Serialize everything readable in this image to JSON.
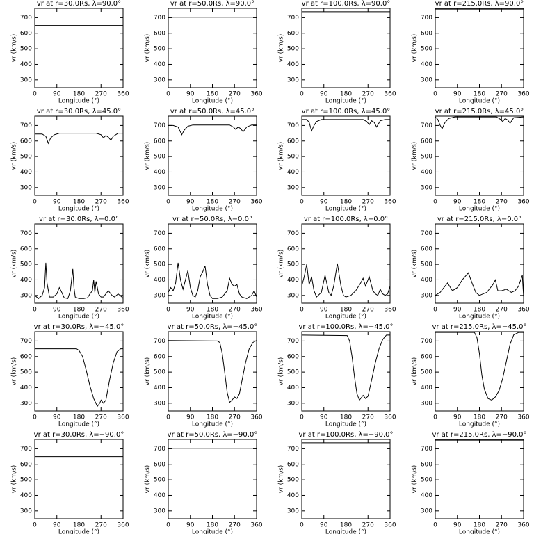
{
  "chart_data": [
    {
      "type": "line",
      "title": "vr at r=30.0Rs, λ=90.0°",
      "x_label": "Longitude (°)",
      "y_label": "vr (km/s)",
      "x": [
        0,
        360
      ],
      "values": [
        650,
        650
      ],
      "xlim": [
        0,
        360
      ],
      "ylim": [
        250,
        760
      ],
      "xticks": [
        0,
        90,
        180,
        270,
        360
      ],
      "yticks": [
        300,
        400,
        500,
        600,
        700
      ],
      "color": "#000000"
    },
    {
      "type": "line",
      "title": "vr at r=50.0Rs, λ=90.0°",
      "x_label": "Longitude (°)",
      "y_label": "vr (km/s)",
      "x": [
        0,
        360
      ],
      "values": [
        703,
        703
      ],
      "xlim": [
        0,
        360
      ],
      "ylim": [
        250,
        760
      ],
      "xticks": [
        0,
        90,
        180,
        270,
        360
      ],
      "yticks": [
        300,
        400,
        500,
        600,
        700
      ],
      "color": "#000000"
    },
    {
      "type": "line",
      "title": "vr at r=100.0Rs, λ=90.0°",
      "x_label": "Longitude (°)",
      "y_label": "vr (km/s)",
      "x": [
        0,
        360
      ],
      "values": [
        738,
        738
      ],
      "xlim": [
        0,
        360
      ],
      "ylim": [
        250,
        760
      ],
      "xticks": [
        0,
        90,
        180,
        270,
        360
      ],
      "yticks": [
        300,
        400,
        500,
        600,
        700
      ],
      "color": "#000000"
    },
    {
      "type": "line",
      "title": "vr at r=215.0Rs, λ=90.0°",
      "x_label": "Longitude (°)",
      "y_label": "vr (km/s)",
      "x": [
        0,
        360
      ],
      "values": [
        755,
        755
      ],
      "xlim": [
        0,
        360
      ],
      "ylim": [
        250,
        760
      ],
      "xticks": [
        0,
        90,
        180,
        270,
        360
      ],
      "yticks": [
        300,
        400,
        500,
        600,
        700
      ],
      "color": "#000000"
    },
    {
      "type": "line",
      "title": "vr at r=30.0Rs, λ=45.0°",
      "x_label": "Longitude (°)",
      "y_label": "vr (km/s)",
      "x": [
        0,
        30,
        45,
        55,
        65,
        80,
        100,
        150,
        200,
        250,
        270,
        280,
        290,
        300,
        310,
        320,
        340,
        360
      ],
      "values": [
        645,
        645,
        630,
        585,
        620,
        640,
        650,
        650,
        650,
        650,
        640,
        620,
        635,
        625,
        605,
        630,
        650,
        650
      ],
      "xlim": [
        0,
        360
      ],
      "ylim": [
        250,
        760
      ],
      "xticks": [
        0,
        90,
        180,
        270,
        360
      ],
      "yticks": [
        300,
        400,
        500,
        600,
        700
      ],
      "color": "#000000"
    },
    {
      "type": "line",
      "title": "vr at r=50.0Rs, λ=45.0°",
      "x_label": "Longitude (°)",
      "y_label": "vr (km/s)",
      "x": [
        0,
        20,
        40,
        55,
        65,
        80,
        100,
        150,
        200,
        250,
        265,
        275,
        285,
        295,
        305,
        320,
        340,
        360
      ],
      "values": [
        700,
        700,
        690,
        640,
        670,
        695,
        703,
        703,
        703,
        703,
        690,
        675,
        690,
        680,
        660,
        690,
        703,
        703
      ],
      "xlim": [
        0,
        360
      ],
      "ylim": [
        250,
        760
      ],
      "xticks": [
        0,
        90,
        180,
        270,
        360
      ],
      "yticks": [
        300,
        400,
        500,
        600,
        700
      ],
      "color": "#000000"
    },
    {
      "type": "line",
      "title": "vr at r=100.0Rs, λ=45.0°",
      "x_label": "Longitude (°)",
      "y_label": "vr (km/s)",
      "x": [
        0,
        20,
        30,
        40,
        50,
        60,
        80,
        150,
        250,
        265,
        275,
        285,
        295,
        305,
        320,
        340,
        360
      ],
      "values": [
        738,
        738,
        720,
        665,
        700,
        725,
        738,
        738,
        738,
        725,
        705,
        730,
        720,
        690,
        730,
        738,
        738
      ],
      "xlim": [
        0,
        360
      ],
      "ylim": [
        250,
        760
      ],
      "xticks": [
        0,
        90,
        180,
        270,
        360
      ],
      "yticks": [
        300,
        400,
        500,
        600,
        700
      ],
      "color": "#000000"
    },
    {
      "type": "line",
      "title": "vr at r=215.0Rs, λ=45.0°",
      "x_label": "Longitude (°)",
      "y_label": "vr (km/s)",
      "x": [
        0,
        10,
        20,
        28,
        40,
        55,
        80,
        150,
        250,
        265,
        275,
        285,
        295,
        305,
        320,
        360
      ],
      "values": [
        755,
        740,
        700,
        680,
        720,
        745,
        755,
        755,
        755,
        740,
        725,
        745,
        735,
        715,
        750,
        755
      ],
      "xlim": [
        0,
        360
      ],
      "ylim": [
        250,
        760
      ],
      "xticks": [
        0,
        90,
        180,
        270,
        360
      ],
      "yticks": [
        300,
        400,
        500,
        600,
        700
      ],
      "color": "#000000"
    },
    {
      "type": "line",
      "title": "vr at r=30.0Rs, λ=0.0°",
      "x_label": "Longitude (°)",
      "y_label": "vr (km/s)",
      "x": [
        0,
        15,
        30,
        40,
        45,
        50,
        60,
        75,
        90,
        100,
        110,
        120,
        135,
        145,
        155,
        160,
        165,
        180,
        200,
        215,
        225,
        235,
        240,
        245,
        250,
        255,
        260,
        270,
        280,
        290,
        300,
        315,
        325,
        340,
        355,
        360
      ],
      "values": [
        300,
        280,
        300,
        350,
        510,
        380,
        290,
        290,
        310,
        350,
        320,
        285,
        280,
        330,
        470,
        350,
        290,
        280,
        280,
        285,
        310,
        330,
        400,
        320,
        390,
        350,
        310,
        290,
        290,
        310,
        330,
        300,
        290,
        310,
        290,
        280
      ],
      "xlim": [
        0,
        360
      ],
      "ylim": [
        250,
        760
      ],
      "xticks": [
        0,
        90,
        180,
        270,
        360
      ],
      "yticks": [
        300,
        400,
        500,
        600,
        700
      ],
      "color": "#000000"
    },
    {
      "type": "line",
      "title": "vr at r=50.0Rs, λ=0.0°",
      "x_label": "Longitude (°)",
      "y_label": "vr (km/s)",
      "x": [
        0,
        10,
        20,
        30,
        40,
        50,
        60,
        70,
        80,
        90,
        100,
        110,
        120,
        130,
        140,
        150,
        160,
        170,
        180,
        200,
        220,
        240,
        250,
        260,
        270,
        280,
        290,
        300,
        320,
        340,
        350,
        360
      ],
      "values": [
        320,
        350,
        330,
        380,
        510,
        400,
        340,
        400,
        460,
        350,
        300,
        290,
        330,
        420,
        450,
        490,
        370,
        300,
        280,
        280,
        290,
        330,
        410,
        370,
        360,
        370,
        310,
        290,
        280,
        300,
        330,
        290
      ],
      "xlim": [
        0,
        360
      ],
      "ylim": [
        250,
        760
      ],
      "xticks": [
        0,
        90,
        180,
        270,
        360
      ],
      "yticks": [
        300,
        400,
        500,
        600,
        700
      ],
      "color": "#000000"
    },
    {
      "type": "line",
      "title": "vr at r=100.0Rs, λ=0.0°",
      "x_label": "Longitude (°)",
      "y_label": "vr (km/s)",
      "x": [
        0,
        10,
        20,
        30,
        40,
        50,
        60,
        80,
        95,
        110,
        120,
        130,
        145,
        160,
        170,
        180,
        200,
        220,
        240,
        250,
        260,
        275,
        290,
        300,
        310,
        320,
        330,
        340,
        350,
        360
      ],
      "values": [
        360,
        420,
        500,
        370,
        420,
        330,
        290,
        320,
        430,
        320,
        300,
        360,
        505,
        360,
        300,
        290,
        300,
        330,
        380,
        410,
        360,
        420,
        330,
        310,
        300,
        340,
        310,
        300,
        310,
        360
      ],
      "xlim": [
        0,
        360
      ],
      "ylim": [
        250,
        760
      ],
      "xticks": [
        0,
        90,
        180,
        270,
        360
      ],
      "yticks": [
        300,
        400,
        500,
        600,
        700
      ],
      "color": "#000000"
    },
    {
      "type": "line",
      "title": "vr at r=215.0Rs, λ=0.0°",
      "x_label": "Longitude (°)",
      "y_label": "vr (km/s)",
      "x": [
        0,
        20,
        50,
        70,
        90,
        110,
        135,
        150,
        165,
        180,
        210,
        235,
        245,
        255,
        270,
        290,
        310,
        325,
        340,
        355,
        360
      ],
      "values": [
        300,
        320,
        380,
        330,
        350,
        400,
        445,
        380,
        320,
        300,
        320,
        370,
        400,
        330,
        330,
        340,
        320,
        330,
        360,
        430,
        290
      ],
      "xlim": [
        0,
        360
      ],
      "ylim": [
        250,
        760
      ],
      "xticks": [
        0,
        90,
        180,
        270,
        360
      ],
      "yticks": [
        300,
        400,
        500,
        600,
        700
      ],
      "color": "#000000"
    },
    {
      "type": "line",
      "title": "vr at r=30.0Rs, λ=−45.0°",
      "x_label": "Longitude (°)",
      "y_label": "vr (km/s)",
      "x": [
        0,
        170,
        180,
        195,
        210,
        225,
        240,
        255,
        265,
        270,
        280,
        290,
        305,
        320,
        335,
        350,
        360
      ],
      "values": [
        650,
        650,
        640,
        600,
        510,
        410,
        330,
        280,
        300,
        320,
        300,
        320,
        450,
        560,
        630,
        650,
        650
      ],
      "xlim": [
        0,
        360
      ],
      "ylim": [
        250,
        760
      ],
      "xticks": [
        0,
        90,
        180,
        270,
        360
      ],
      "yticks": [
        300,
        400,
        500,
        600,
        700
      ],
      "color": "#000000"
    },
    {
      "type": "line",
      "title": "vr at r=50.0Rs, λ=−45.0°",
      "x_label": "Longitude (°)",
      "y_label": "vr (km/s)",
      "x": [
        0,
        200,
        210,
        220,
        230,
        240,
        250,
        260,
        270,
        280,
        290,
        300,
        315,
        330,
        345,
        360
      ],
      "values": [
        703,
        700,
        690,
        620,
        500,
        370,
        305,
        320,
        340,
        330,
        360,
        440,
        560,
        650,
        690,
        703
      ],
      "xlim": [
        0,
        360
      ],
      "ylim": [
        250,
        760
      ],
      "xticks": [
        0,
        90,
        180,
        270,
        360
      ],
      "yticks": [
        300,
        400,
        500,
        600,
        700
      ],
      "color": "#000000"
    },
    {
      "type": "line",
      "title": "vr at r=100.0Rs, λ=−45.0°",
      "x_label": "Longitude (°)",
      "y_label": "vr (km/s)",
      "x": [
        0,
        185,
        195,
        205,
        215,
        225,
        235,
        245,
        250,
        260,
        270,
        285,
        300,
        315,
        330,
        345,
        360
      ],
      "values": [
        738,
        735,
        700,
        600,
        470,
        360,
        320,
        340,
        350,
        330,
        345,
        450,
        560,
        650,
        710,
        738,
        738
      ],
      "xlim": [
        0,
        360
      ],
      "ylim": [
        250,
        760
      ],
      "xticks": [
        0,
        90,
        180,
        270,
        360
      ],
      "yticks": [
        300,
        400,
        500,
        600,
        700
      ],
      "color": "#000000"
    },
    {
      "type": "line",
      "title": "vr at r=215.0Rs, λ=−45.0°",
      "x_label": "Longitude (°)",
      "y_label": "vr (km/s)",
      "x": [
        0,
        160,
        170,
        180,
        190,
        200,
        215,
        230,
        245,
        260,
        275,
        290,
        305,
        320,
        340,
        360
      ],
      "values": [
        755,
        755,
        720,
        620,
        480,
        390,
        330,
        320,
        340,
        380,
        460,
        570,
        680,
        740,
        755,
        755
      ],
      "xlim": [
        0,
        360
      ],
      "ylim": [
        250,
        760
      ],
      "xticks": [
        0,
        90,
        180,
        270,
        360
      ],
      "yticks": [
        300,
        400,
        500,
        600,
        700
      ],
      "color": "#000000"
    },
    {
      "type": "line",
      "title": "vr at r=30.0Rs, λ=−90.0°",
      "x_label": "Longitude (°)",
      "y_label": "vr (km/s)",
      "x": [
        0,
        360
      ],
      "values": [
        650,
        650
      ],
      "xlim": [
        0,
        360
      ],
      "ylim": [
        250,
        760
      ],
      "xticks": [
        0,
        90,
        180,
        270,
        360
      ],
      "yticks": [
        300,
        400,
        500,
        600,
        700
      ],
      "color": "#000000"
    },
    {
      "type": "line",
      "title": "vr at r=50.0Rs, λ=−90.0°",
      "x_label": "Longitude (°)",
      "y_label": "vr (km/s)",
      "x": [
        0,
        360
      ],
      "values": [
        703,
        703
      ],
      "xlim": [
        0,
        360
      ],
      "ylim": [
        250,
        760
      ],
      "xticks": [
        0,
        90,
        180,
        270,
        360
      ],
      "yticks": [
        300,
        400,
        500,
        600,
        700
      ],
      "color": "#000000"
    },
    {
      "type": "line",
      "title": "vr at r=100.0Rs, λ=−90.0°",
      "x_label": "Longitude (°)",
      "y_label": "vr (km/s)",
      "x": [
        0,
        360
      ],
      "values": [
        738,
        738
      ],
      "xlim": [
        0,
        360
      ],
      "ylim": [
        250,
        760
      ],
      "xticks": [
        0,
        90,
        180,
        270,
        360
      ],
      "yticks": [
        300,
        400,
        500,
        600,
        700
      ],
      "color": "#000000"
    },
    {
      "type": "line",
      "title": "vr at r=215.0Rs, λ=−90.0°",
      "x_label": "Longitude (°)",
      "y_label": "vr (km/s)",
      "x": [
        0,
        360
      ],
      "values": [
        755,
        755
      ],
      "xlim": [
        0,
        360
      ],
      "ylim": [
        250,
        760
      ],
      "xticks": [
        0,
        90,
        180,
        270,
        360
      ],
      "yticks": [
        300,
        400,
        500,
        600,
        700
      ],
      "color": "#000000"
    }
  ]
}
